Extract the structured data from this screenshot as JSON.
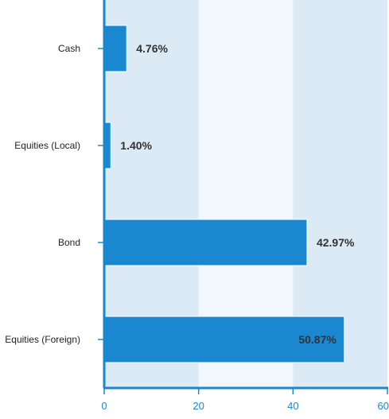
{
  "colors": {
    "bar": "#1a88d0",
    "bar_stroke": "#ffffff",
    "band_dark": "#dbeaf5",
    "band_light": "#f1f7fc",
    "axis": "#1a88d0",
    "label_dark": "#333333"
  },
  "chart_data": {
    "type": "bar",
    "orientation": "horizontal",
    "categories": [
      "Cash",
      "Equities (Local)",
      "Bond",
      "Equities (Foreign)"
    ],
    "values": [
      4.76,
      1.4,
      42.97,
      50.87
    ],
    "data_labels": [
      "4.76%",
      "1.40%",
      "42.97%",
      "50.87%"
    ],
    "xlim": [
      0,
      60
    ],
    "xticks": [
      0,
      20,
      40,
      60
    ],
    "xtick_labels": [
      "0",
      "20",
      "40",
      "60"
    ],
    "title": "",
    "xlabel": "",
    "ylabel": "",
    "grid": "alternating bands",
    "legend": "none"
  }
}
